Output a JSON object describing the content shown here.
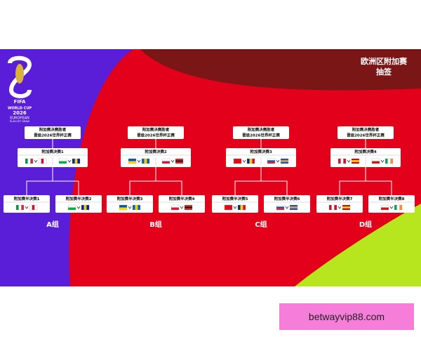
{
  "header": {
    "title": "欧洲区附加赛",
    "subtitle": "抽签"
  },
  "logo": {
    "fifa": "FIFA",
    "line1": "WORLD CUP",
    "year": "2026",
    "line2": "EUROPEAN",
    "line3": "PLAY-OFF DRAW"
  },
  "groups": [
    {
      "label": "A组",
      "winner": [
        "附加赛决赛胜者",
        "晋级2026世界杯正赛"
      ],
      "final": "附加赛决赛1",
      "semis": [
        "附加赛半决赛1",
        "附加赛半决赛2"
      ]
    },
    {
      "label": "B组",
      "winner": [
        "附加赛决赛胜者",
        "晋级2026世界杯正赛"
      ],
      "final": "附加赛决赛2",
      "semis": [
        "附加赛半决赛3",
        "附加赛半决赛4"
      ]
    },
    {
      "label": "C组",
      "winner": [
        "附加赛决赛胜者",
        "晋级2026世界杯正赛"
      ],
      "final": "附加赛决赛3",
      "semis": [
        "附加赛半决赛5",
        "附加赛半决赛6"
      ]
    },
    {
      "label": "D组",
      "winner": [
        "附加赛决赛胜者",
        "晋级2026世界杯正赛"
      ],
      "final": "附加赛决赛4",
      "semis": [
        "附加赛半决赛7",
        "附加赛半决赛8"
      ]
    }
  ],
  "watermark": "betwayvip88.com"
}
